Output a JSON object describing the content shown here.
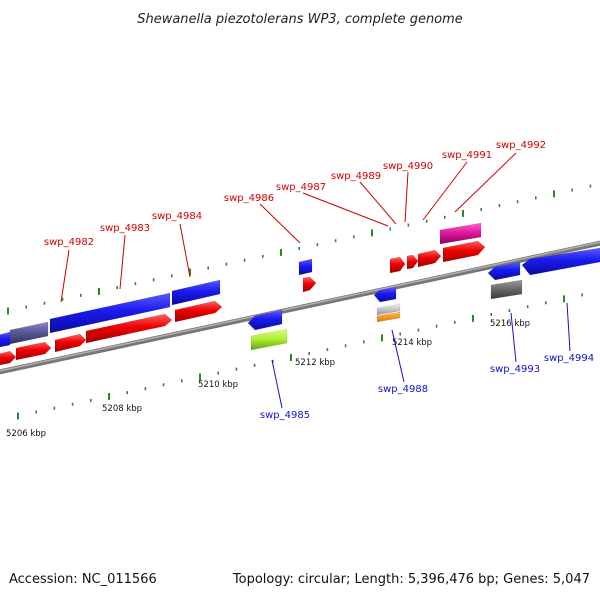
{
  "title": "Shewanella piezotolerans WP3, complete genome",
  "footer": {
    "accession": "Accession: NC_011566",
    "stats": "Topology: circular; Length: 5,396,476 bp; Genes: 5,047"
  },
  "colors": {
    "forward": "#ee0000",
    "reverse": "#1a1aee",
    "backbone": "#8a8a8a",
    "tick": "#2a8a2a",
    "label_forward": "#d40000",
    "label_reverse": "#1111cc"
  },
  "scale": {
    "unit": "kbp",
    "labels": [
      {
        "kbp": 5206,
        "text": "5206 kbp"
      },
      {
        "kbp": 5208,
        "text": "5208 kbp"
      },
      {
        "kbp": 5210,
        "text": "5210 kbp"
      },
      {
        "kbp": 5212,
        "text": "5212 kbp"
      },
      {
        "kbp": 5214,
        "text": "5214 kbp"
      },
      {
        "kbp": 5216,
        "text": "5216 kbp"
      }
    ]
  },
  "forward_labels": [
    "swp_4982",
    "swp_4983",
    "swp_4984",
    "swp_4986",
    "swp_4987",
    "swp_4989",
    "swp_4990",
    "swp_4991",
    "swp_4992"
  ],
  "reverse_labels": [
    "swp_4985",
    "swp_4988",
    "swp_4993",
    "swp_4994"
  ]
}
